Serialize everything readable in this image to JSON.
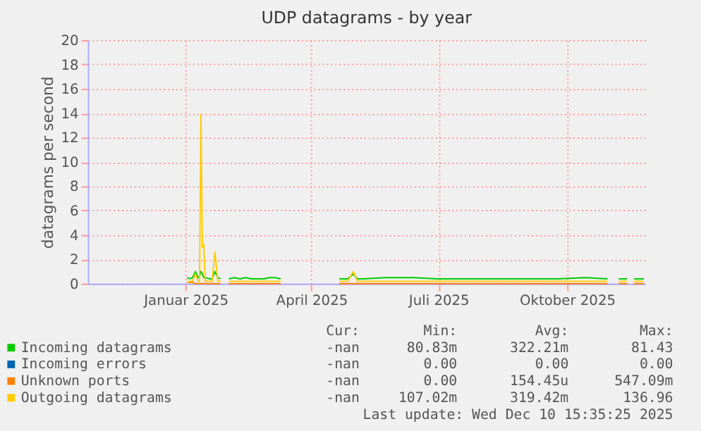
{
  "chart_data": {
    "type": "line",
    "title": "UDP datagrams - by year",
    "ylabel": "datagrams per second",
    "x": [
      "2025-01-17",
      "2025-01-19",
      "2025-01-21",
      "2025-01-23",
      "2025-01-25",
      "2025-01-26",
      "2025-01-27",
      "2025-01-28",
      "2025-01-29",
      "2025-01-30",
      "2025-02-02",
      "2025-02-04",
      "2025-02-06",
      "2025-02-08",
      "2025-02-10",
      "2025-02-12",
      "2025-02-16",
      "2025-02-20",
      "2025-02-24",
      "2025-02-28",
      "2025-03-04",
      "2025-03-09",
      "2025-03-13",
      "2025-03-17",
      "2025-03-21",
      "2025-03-25",
      "2025-03-27",
      "2025-05-06",
      "2025-05-12",
      "2025-05-16",
      "2025-05-19",
      "2025-05-23",
      "2025-06-08",
      "2025-06-12",
      "2025-06-28",
      "2025-07-15",
      "2025-08-15",
      "2025-09-15",
      "2025-10-10",
      "2025-10-29",
      "2025-11-14",
      "2025-11-17",
      "2025-11-22",
      "2025-11-28",
      "2025-11-30",
      "2025-12-03",
      "2025-12-10"
    ],
    "series": [
      {
        "name": "Incoming errors",
        "color": "#0066b3",
        "values": [
          null,
          null,
          null,
          null,
          null,
          null,
          null,
          null,
          null,
          null,
          null,
          null,
          null,
          null,
          null,
          null,
          null,
          null,
          null,
          null,
          null,
          null,
          null,
          null,
          null,
          null,
          null,
          null,
          null,
          null,
          null,
          null,
          null,
          null,
          null,
          null,
          null,
          null,
          null,
          null,
          null,
          null,
          null,
          null,
          null,
          null,
          null
        ]
      },
      {
        "name": "Unknown ports",
        "color": "#ff8000",
        "values": [
          0.1,
          0.1,
          0.1,
          0,
          0,
          0,
          0,
          0,
          0,
          0,
          0,
          0,
          0,
          0,
          0,
          null,
          0,
          0,
          0,
          0,
          0,
          0,
          0,
          0,
          0,
          0,
          null,
          0,
          0,
          0,
          0,
          0,
          0,
          0,
          0,
          0,
          0,
          0,
          0,
          0,
          0,
          null,
          0,
          0,
          null,
          0,
          0
        ]
      },
      {
        "name": "Incoming datagrams",
        "color": "#00cc00",
        "values": [
          0.5,
          0.4,
          0.5,
          1.0,
          0.5,
          0.6,
          1.0,
          0.8,
          0.5,
          0.5,
          0.4,
          0.4,
          1.0,
          0.5,
          0.4,
          null,
          0.4,
          0.5,
          0.4,
          0.5,
          0.4,
          0.4,
          0.4,
          0.5,
          0.5,
          0.4,
          null,
          0.4,
          0.4,
          0.8,
          0.4,
          0.4,
          0.5,
          0.5,
          0.5,
          0.4,
          0.4,
          0.4,
          0.4,
          0.5,
          0.4,
          null,
          0.4,
          0.4,
          null,
          0.4,
          0.4
        ]
      },
      {
        "name": "Outgoing datagrams",
        "color": "#ffcc00",
        "values": [
          0.1,
          0.2,
          0.2,
          0.8,
          0.2,
          0.2,
          13.9,
          3.0,
          3.2,
          0.2,
          0.2,
          0.2,
          2.6,
          0.2,
          0.2,
          null,
          0.2,
          0.2,
          0.2,
          0.2,
          0.2,
          0.2,
          0.2,
          0.2,
          0.2,
          0.2,
          null,
          0.2,
          0.2,
          1.0,
          0.2,
          0.2,
          0.2,
          0.2,
          0.2,
          0.2,
          0.2,
          0.2,
          0.2,
          0.2,
          0.2,
          null,
          0.2,
          0.2,
          null,
          0.2,
          0.2
        ]
      }
    ],
    "xlim": [
      "2024-11-07",
      "2025-12-11"
    ],
    "xticks": [
      {
        "value": "2025-01-16",
        "label": "Januar 2025"
      },
      {
        "value": "2025-04-16",
        "label": "April 2025"
      },
      {
        "value": "2025-07-16",
        "label": "Juli 2025"
      },
      {
        "value": "2025-10-16",
        "label": "Oktober 2025"
      }
    ],
    "ylim": [
      0,
      20
    ],
    "yticks": [
      0,
      2,
      4,
      6,
      8,
      10,
      12,
      14,
      16,
      18,
      20
    ],
    "grid": true,
    "legend": "bottom",
    "marker": "none",
    "line_style": "solid",
    "annotations": [
      "Cur:",
      "Min:",
      "Avg:",
      "Max:",
      "-nan",
      "0.00",
      "0.00",
      "0.00",
      "-nan",
      "0.00",
      "154.45u",
      "547.09m",
      "-nan",
      "80.83m",
      "322.21m",
      "81.43",
      "-nan",
      "107.02m",
      "319.42m",
      "136.96",
      "Last update: Wed Dec 10 15:35:25 2025"
    ]
  }
}
